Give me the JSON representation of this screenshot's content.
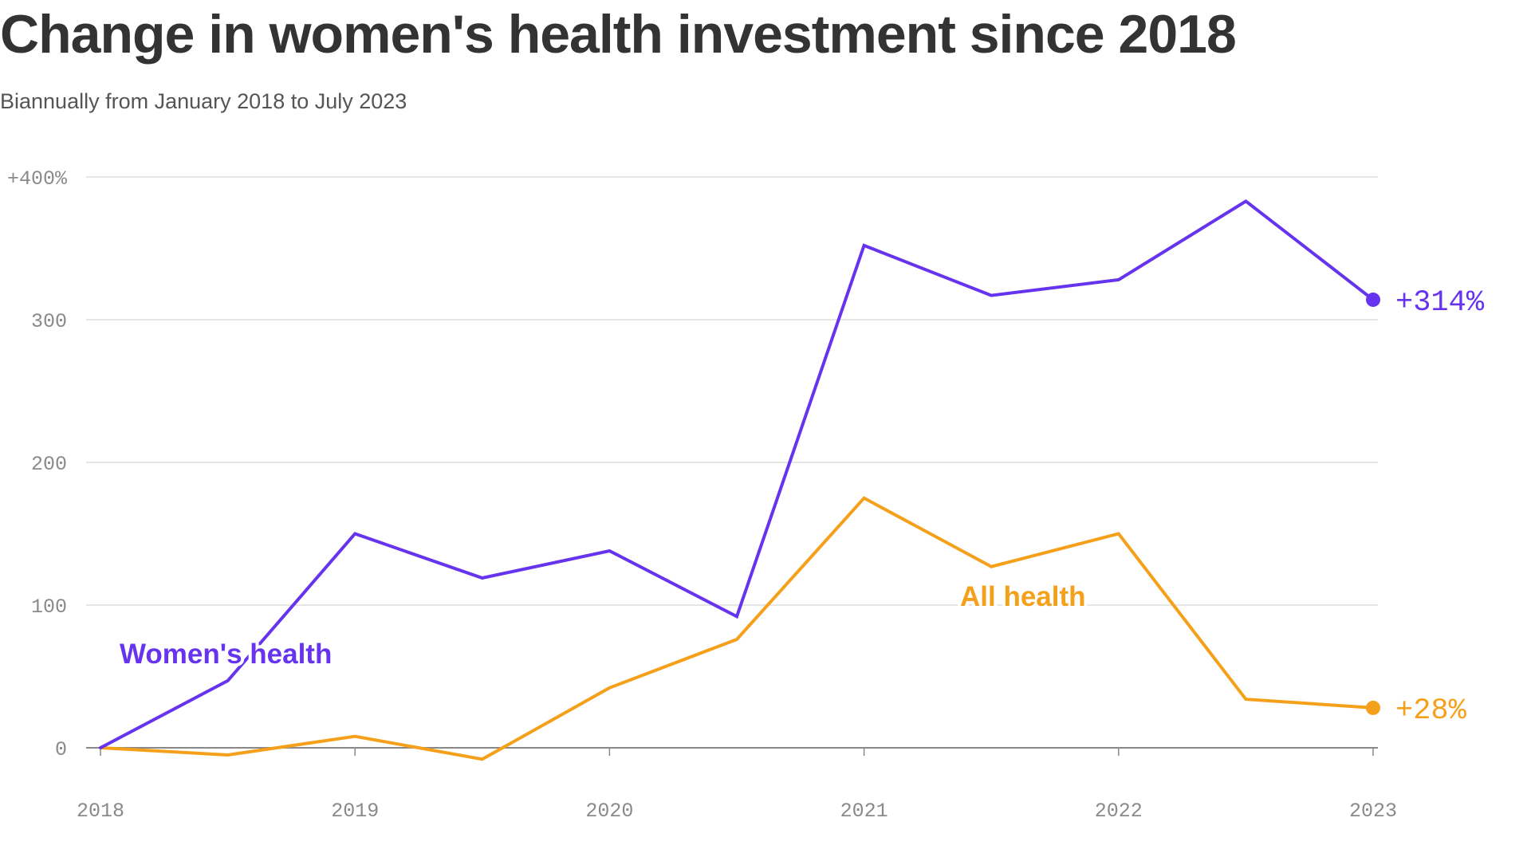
{
  "colors": {
    "womens": "#6633ee",
    "all": "#f5a01a",
    "grid": "#dddddd",
    "baseline": "#888888"
  },
  "chart_data": {
    "type": "line",
    "title": "Change in women's health investment since 2018",
    "subtitle": "Biannually from January 2018 to July 2023",
    "x": [
      2018.0,
      2018.5,
      2019.0,
      2019.5,
      2020.0,
      2020.5,
      2021.0,
      2021.5,
      2022.0,
      2022.5,
      2023.0
    ],
    "x_ticks": [
      2018,
      2019,
      2020,
      2021,
      2022,
      2023
    ],
    "x_tick_labels": [
      "2018",
      "2019",
      "2020",
      "2021",
      "2022",
      "2023"
    ],
    "xlim": [
      2018,
      2023
    ],
    "ylim": [
      0,
      400
    ],
    "y_ticks": [
      0,
      100,
      200,
      300,
      400
    ],
    "y_tick_labels": [
      "0",
      "100",
      "200",
      "300",
      "+400%"
    ],
    "grid": true,
    "series": [
      {
        "key": "womens",
        "name": "Women's health",
        "values": [
          0,
          47,
          150,
          119,
          138,
          92,
          352,
          317,
          328,
          383,
          314
        ],
        "end_label": "+314%"
      },
      {
        "key": "all",
        "name": "All health",
        "values": [
          0,
          -5,
          8,
          -8,
          42,
          76,
          175,
          127,
          150,
          34,
          28
        ],
        "end_label": "+28%"
      }
    ]
  }
}
